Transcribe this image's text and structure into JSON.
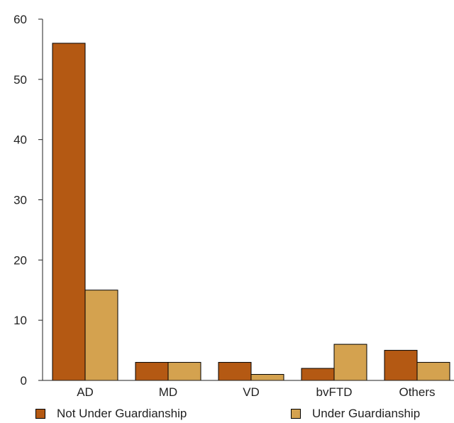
{
  "chart_data": {
    "type": "bar",
    "categories": [
      "AD",
      "MD",
      "VD",
      "bvFTD",
      "Others"
    ],
    "series": [
      {
        "name": "Not Under Guardianship",
        "values": [
          56,
          3,
          3,
          2,
          5
        ],
        "color": "#b45913"
      },
      {
        "name": "Under Guardianship",
        "values": [
          15,
          3,
          1,
          6,
          3
        ],
        "color": "#d4a24f"
      }
    ],
    "yticks": [
      0,
      10,
      20,
      30,
      40,
      50,
      60
    ],
    "ylim": [
      0,
      60
    ],
    "grid": false,
    "legend_position": "bottom"
  }
}
